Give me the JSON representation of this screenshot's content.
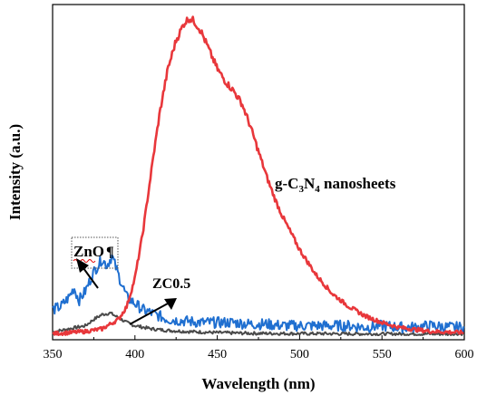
{
  "chart_data": {
    "type": "line",
    "xlabel": "Wavelength (nm)",
    "ylabel": "Intensity (a.u.)",
    "xlim": [
      350,
      600
    ],
    "ylim": [
      0,
      1.0
    ],
    "xticks": [
      "350",
      "400",
      "450",
      "500",
      "550",
      "600"
    ],
    "grid": false,
    "y_ticks_shown": false,
    "series": [
      {
        "label_parts": {
          "pre": "g-C",
          "sub1": "3",
          "mid": "N",
          "sub2": "4",
          "post": " nanosheets"
        },
        "color": "#e8373b",
        "x": [
          350,
          360,
          370,
          380,
          390,
          395,
          400,
          405,
          410,
          415,
          420,
          425,
          430,
          433,
          436,
          440,
          445,
          450,
          455,
          460,
          465,
          470,
          475,
          480,
          485,
          490,
          495,
          500,
          505,
          510,
          520,
          530,
          540,
          550,
          560,
          570,
          580,
          590,
          600
        ],
        "y": [
          0.005,
          0.008,
          0.012,
          0.02,
          0.05,
          0.09,
          0.18,
          0.33,
          0.52,
          0.7,
          0.84,
          0.93,
          0.985,
          1.0,
          0.99,
          0.96,
          0.9,
          0.84,
          0.8,
          0.77,
          0.73,
          0.66,
          0.58,
          0.5,
          0.43,
          0.37,
          0.32,
          0.27,
          0.23,
          0.19,
          0.13,
          0.09,
          0.06,
          0.04,
          0.025,
          0.018,
          0.012,
          0.01,
          0.008
        ]
      },
      {
        "label": "ZnO",
        "color": "#1f6fd0",
        "x": [
          350,
          355,
          360,
          363,
          366,
          370,
          375,
          380,
          383,
          386,
          390,
          395,
          400,
          405,
          410,
          420,
          430,
          440,
          450,
          460,
          470,
          480,
          490,
          500,
          510,
          520,
          530,
          540,
          550,
          560,
          570,
          580,
          590,
          600
        ],
        "y": [
          0.08,
          0.09,
          0.12,
          0.15,
          0.11,
          0.14,
          0.2,
          0.24,
          0.22,
          0.25,
          0.19,
          0.12,
          0.1,
          0.08,
          0.07,
          0.05,
          0.045,
          0.04,
          0.04,
          0.04,
          0.035,
          0.035,
          0.03,
          0.03,
          0.03,
          0.03,
          0.03,
          0.025,
          0.03,
          0.025,
          0.025,
          0.03,
          0.025,
          0.025
        ]
      },
      {
        "label": "ZC0.5",
        "color": "#4a4a4a",
        "x": [
          350,
          360,
          370,
          375,
          380,
          385,
          390,
          395,
          400,
          410,
          420,
          430,
          440,
          450,
          470,
          500,
          550,
          600
        ],
        "y": [
          0.01,
          0.02,
          0.03,
          0.05,
          0.065,
          0.07,
          0.055,
          0.04,
          0.03,
          0.02,
          0.015,
          0.012,
          0.01,
          0.008,
          0.006,
          0.005,
          0.004,
          0.004
        ]
      }
    ]
  }
}
